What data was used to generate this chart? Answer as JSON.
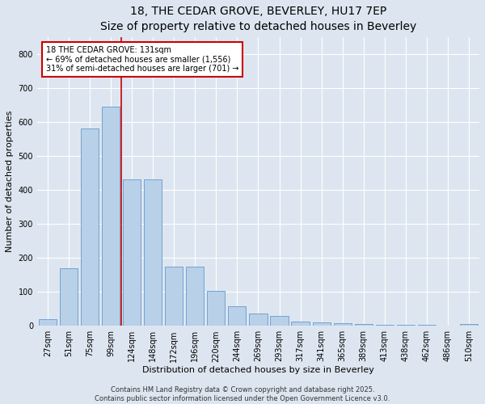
{
  "title": "18, THE CEDAR GROVE, BEVERLEY, HU17 7EP",
  "subtitle": "Size of property relative to detached houses in Beverley",
  "xlabel": "Distribution of detached houses by size in Beverley",
  "ylabel": "Number of detached properties",
  "categories": [
    "27sqm",
    "51sqm",
    "75sqm",
    "99sqm",
    "124sqm",
    "148sqm",
    "172sqm",
    "196sqm",
    "220sqm",
    "244sqm",
    "269sqm",
    "293sqm",
    "317sqm",
    "341sqm",
    "365sqm",
    "389sqm",
    "413sqm",
    "438sqm",
    "462sqm",
    "486sqm",
    "510sqm"
  ],
  "values": [
    20,
    170,
    580,
    645,
    430,
    430,
    175,
    175,
    103,
    58,
    37,
    30,
    13,
    10,
    8,
    5,
    3,
    2,
    2,
    1,
    5
  ],
  "bar_color": "#b8d0e8",
  "bar_edge_color": "#6699cc",
  "vline_x": 3.5,
  "vline_color": "#cc0000",
  "annotation_text": "18 THE CEDAR GROVE: 131sqm\n← 69% of detached houses are smaller (1,556)\n31% of semi-detached houses are larger (701) →",
  "annotation_box_color": "#ffffff",
  "annotation_box_edge": "#cc0000",
  "footer_line1": "Contains HM Land Registry data © Crown copyright and database right 2025.",
  "footer_line2": "Contains public sector information licensed under the Open Government Licence v3.0.",
  "bg_color": "#dde6f0",
  "plot_bg_color": "#dde6f0",
  "ylim": [
    0,
    850
  ],
  "yticks": [
    0,
    100,
    200,
    300,
    400,
    500,
    600,
    700,
    800
  ],
  "title_fontsize": 10,
  "axis_label_fontsize": 8,
  "tick_fontsize": 7,
  "annotation_fontsize": 7,
  "footer_fontsize": 6
}
